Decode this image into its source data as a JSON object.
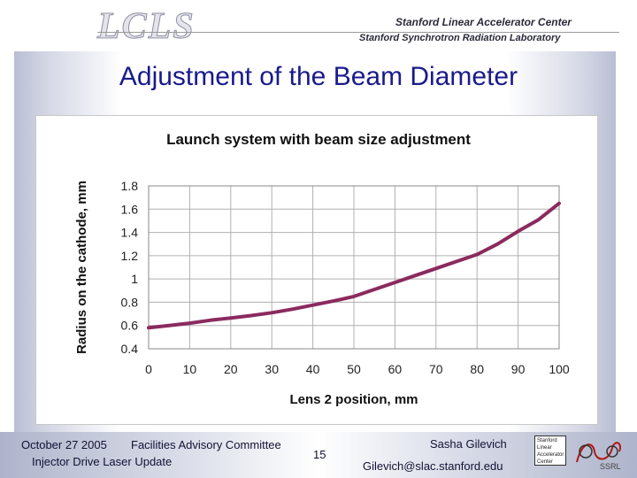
{
  "header": {
    "logo_text": "LCLS",
    "org_line_1": "Stanford Linear Accelerator Center",
    "org_line_2": "Stanford Synchrotron Radiation Laboratory"
  },
  "slide": {
    "title": "Adjustment of the Beam Diameter"
  },
  "footer": {
    "date": "October 27 2005",
    "committee": "Facilities Advisory Committee",
    "subtitle": "Injector Drive Laser Update",
    "page_number": "15",
    "presenter": "Sasha Gilevich",
    "email": "Gilevich@slac.stanford.edu",
    "logo_lines": [
      "Stanford",
      "Linear",
      "Accelerator",
      "Center"
    ],
    "ssrl_logo_text": "SSRL"
  },
  "colors": {
    "title": "#1a1a8c",
    "series": "#8b2a5e",
    "grid": "#b0b0b0"
  },
  "chart_data": {
    "type": "line",
    "title": "Launch system with beam size adjustment",
    "xlabel": "Lens 2 position, mm",
    "ylabel": "Radius on the cathode, mm",
    "xlim": [
      0,
      100
    ],
    "ylim": [
      0.4,
      1.8
    ],
    "x_ticks": [
      0,
      10,
      20,
      30,
      40,
      50,
      60,
      70,
      80,
      90,
      100
    ],
    "y_ticks": [
      "0.4",
      "0.6",
      "0.8",
      "1",
      "1.2",
      "1.4",
      "1.6",
      "1.8"
    ],
    "grid": true,
    "series": [
      {
        "x": [
          0,
          5,
          10,
          15,
          20,
          25,
          30,
          35,
          40,
          45,
          50,
          55,
          60,
          65,
          70,
          75,
          80,
          85,
          90,
          95,
          100
        ],
        "values": [
          0.58,
          0.6,
          0.62,
          0.645,
          0.665,
          0.685,
          0.71,
          0.74,
          0.775,
          0.81,
          0.85,
          0.91,
          0.97,
          1.03,
          1.09,
          1.15,
          1.21,
          1.3,
          1.41,
          1.51,
          1.65
        ]
      }
    ]
  }
}
